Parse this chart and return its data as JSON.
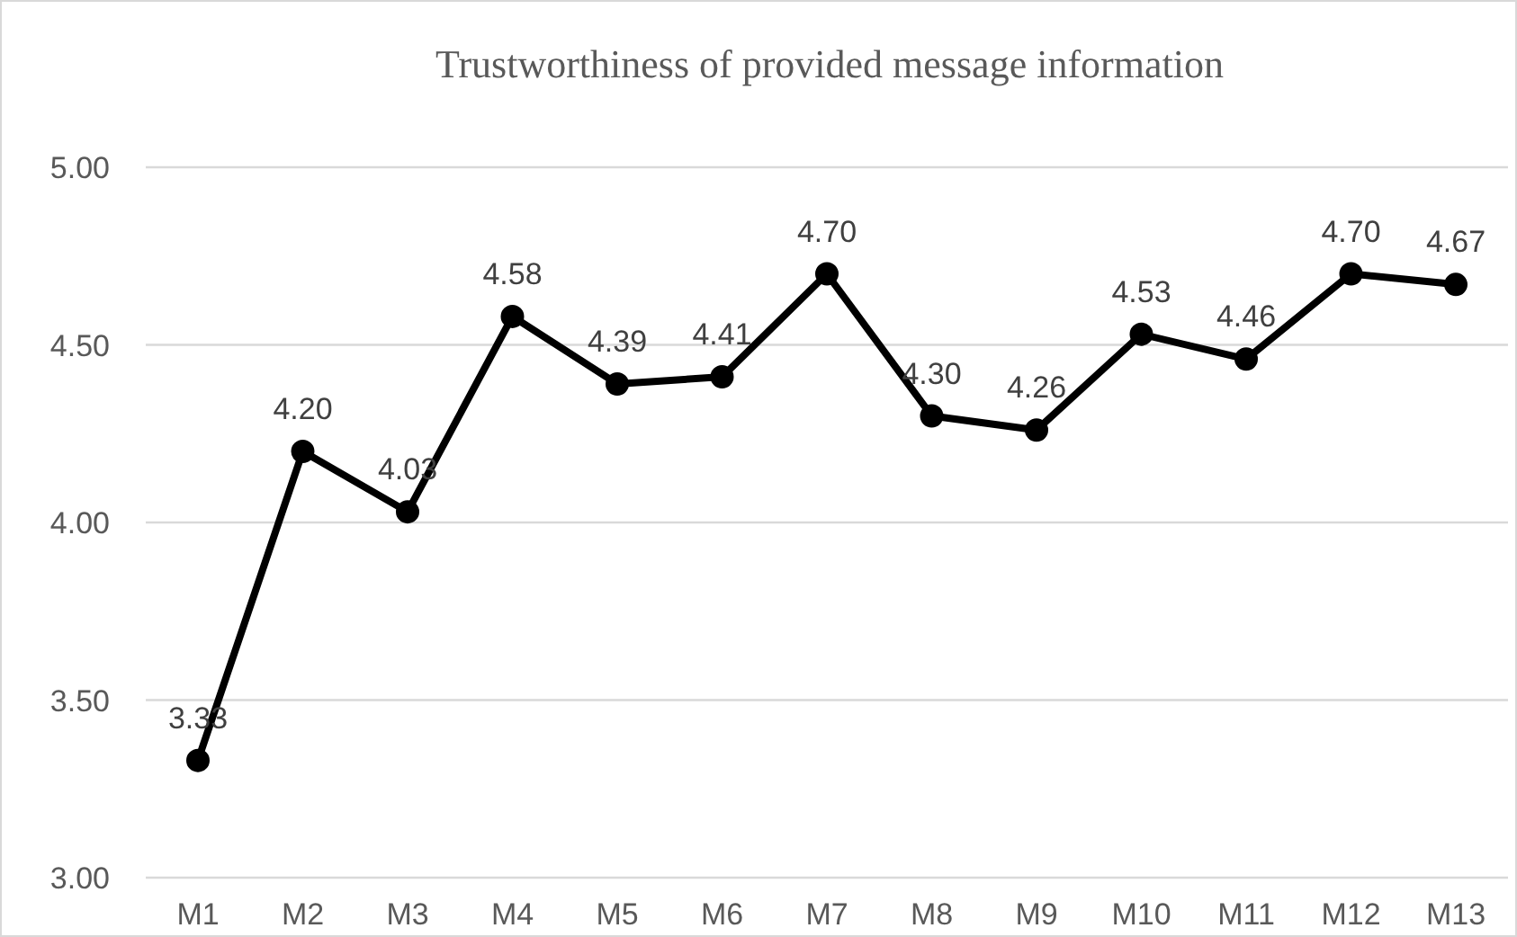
{
  "chart_data": {
    "type": "line",
    "title": "Trustworthiness of provided message information",
    "categories": [
      "M1",
      "M2",
      "M3",
      "M4",
      "M5",
      "M6",
      "M7",
      "M8",
      "M9",
      "M10",
      "M11",
      "M12",
      "M13"
    ],
    "series": [
      {
        "color": "#000000",
        "values": [
          3.33,
          4.2,
          4.03,
          4.58,
          4.39,
          4.41,
          4.7,
          4.3,
          4.26,
          4.53,
          4.46,
          4.7,
          4.67
        ]
      }
    ],
    "value_labels": [
      "3.33",
      "4.20",
      "4.03",
      "4.58",
      "4.39",
      "4.41",
      "4.70",
      "4.30",
      "4.26",
      "4.53",
      "4.46",
      "4.70",
      "4.67"
    ],
    "ylim": [
      3,
      5
    ],
    "yticks": [
      {
        "value": 3,
        "label": "3.00"
      },
      {
        "value": 3.5,
        "label": "3.50"
      },
      {
        "value": 4,
        "label": "4.00"
      },
      {
        "value": 4.5,
        "label": "4.50"
      },
      {
        "value": 5,
        "label": "5.00"
      }
    ],
    "grid": "y",
    "marker": "circle",
    "line_style": "solid",
    "legend": false
  }
}
